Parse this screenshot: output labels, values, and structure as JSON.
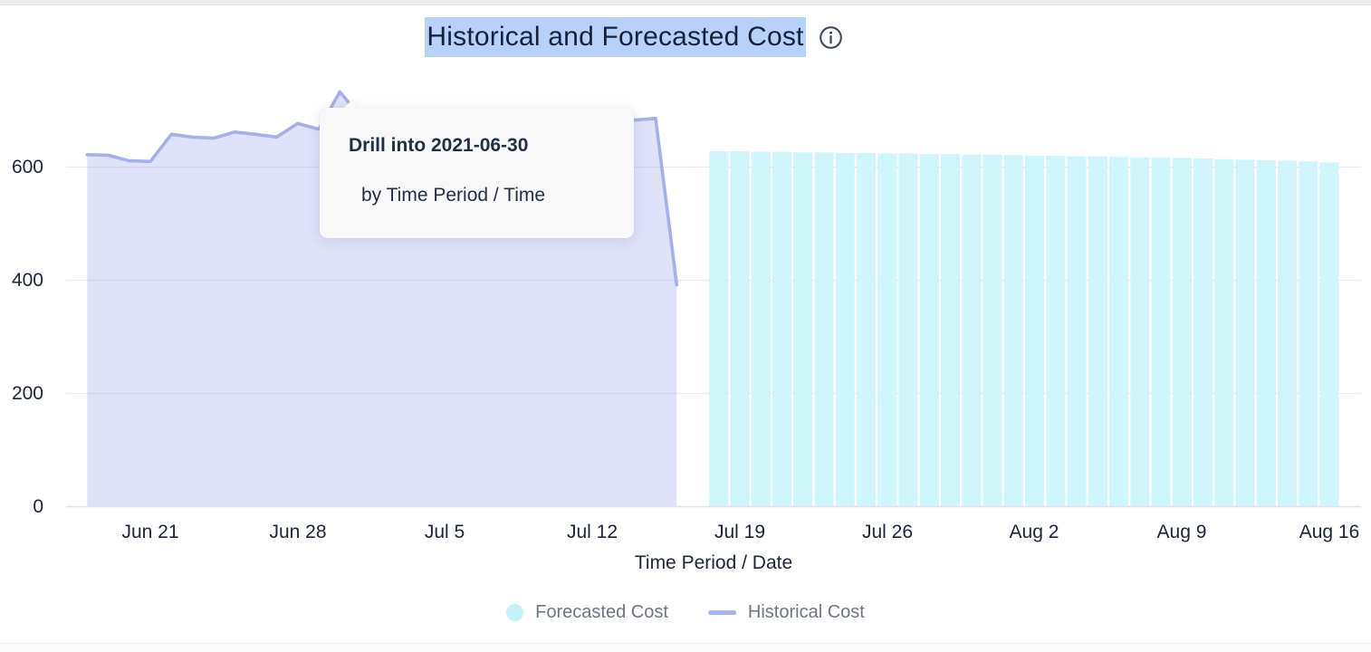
{
  "header": {
    "title": "Historical and Forecasted Cost",
    "title_selected": true,
    "selection_color": "#b6d2fa",
    "info_icon": "info-circle-icon"
  },
  "tooltip": {
    "line1": "Drill into 2021-06-30",
    "line2": "by Time Period / Time"
  },
  "chart_data": {
    "type": "combo",
    "title": "Historical and Forecasted Cost",
    "xlabel": "Time Period / Date",
    "ylabel": "",
    "ylim": [
      0,
      760
    ],
    "grid": "horizontal",
    "legend_position": "bottom",
    "yticks": [
      0,
      200,
      400,
      600
    ],
    "ytick_labels_top_down": [
      "600",
      "400",
      "200",
      "0"
    ],
    "xticks": [
      "Jun 21",
      "Jun 28",
      "Jul 5",
      "Jul 12",
      "Jul 19",
      "Jul 26",
      "Aug 2",
      "Aug 9",
      "Aug 16"
    ],
    "series": [
      {
        "name": "Historical Cost",
        "type": "area",
        "line_color": "#a5afec",
        "fill_color": "rgba(165,175,238,0.36)",
        "dates": [
          "2021-06-18",
          "2021-06-19",
          "2021-06-20",
          "2021-06-21",
          "2021-06-22",
          "2021-06-23",
          "2021-06-24",
          "2021-06-25",
          "2021-06-26",
          "2021-06-27",
          "2021-06-28",
          "2021-06-29",
          "2021-06-30",
          "2021-07-01",
          "2021-07-02",
          "2021-07-03",
          "2021-07-04",
          "2021-07-05",
          "2021-07-06",
          "2021-07-07",
          "2021-07-08",
          "2021-07-09",
          "2021-07-10",
          "2021-07-11",
          "2021-07-12",
          "2021-07-13",
          "2021-07-14",
          "2021-07-15",
          "2021-07-16"
        ],
        "values": [
          622,
          621,
          611,
          610,
          658,
          653,
          651,
          662,
          658,
          653,
          677,
          667,
          733,
          688,
          676,
          670,
          672,
          668,
          671,
          666,
          669,
          672,
          668,
          674,
          679,
          681,
          683,
          686,
          392
        ]
      },
      {
        "name": "Forecasted Cost",
        "type": "bar",
        "color": "#cdf5fa",
        "dates": [
          "2021-07-18",
          "2021-07-19",
          "2021-07-20",
          "2021-07-21",
          "2021-07-22",
          "2021-07-23",
          "2021-07-24",
          "2021-07-25",
          "2021-07-26",
          "2021-07-27",
          "2021-07-28",
          "2021-07-29",
          "2021-07-30",
          "2021-07-31",
          "2021-08-01",
          "2021-08-02",
          "2021-08-03",
          "2021-08-04",
          "2021-08-05",
          "2021-08-06",
          "2021-08-07",
          "2021-08-08",
          "2021-08-09",
          "2021-08-10",
          "2021-08-11",
          "2021-08-12",
          "2021-08-13",
          "2021-08-14",
          "2021-08-15",
          "2021-08-16"
        ],
        "values": [
          628,
          628,
          627,
          627,
          626,
          626,
          625,
          625,
          624,
          624,
          623,
          623,
          622,
          622,
          621,
          620,
          620,
          619,
          619,
          618,
          617,
          617,
          616,
          615,
          614,
          613,
          612,
          611,
          610,
          608
        ]
      }
    ]
  },
  "legend": {
    "items": [
      {
        "label": "Forecasted Cost",
        "swatch": "circle",
        "color": "#c3f2f8"
      },
      {
        "label": "Historical Cost",
        "swatch": "line",
        "color": "#a9b3ee"
      }
    ]
  }
}
